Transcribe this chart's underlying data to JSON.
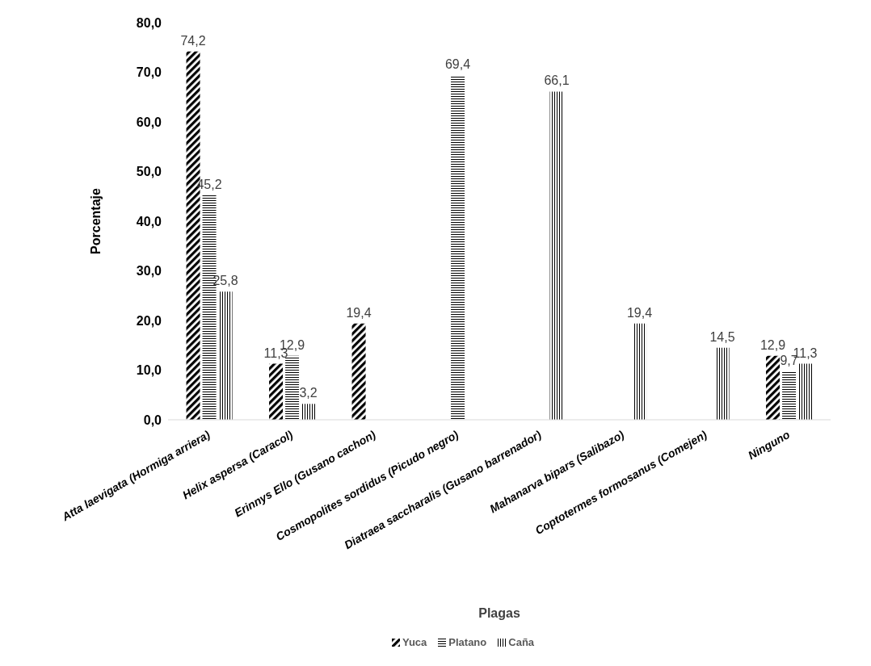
{
  "chart_data": {
    "type": "bar",
    "xlabel": "Plagas",
    "ylabel": "Porcentaje",
    "categories": [
      "Atta laevigata (Hormiga arriera)",
      "Helix aspersa (Caracol)",
      "Erinnys Ello (Gusano cachon)",
      "Cosmopolites sordidus (Picudo negro)",
      "Diatraea saccharalis (Gusano barrenador)",
      "Mahanarva bipars (Salibazo)",
      "Coptotermes formosanus (Comejen)",
      "Ninguno"
    ],
    "series": [
      {
        "name": "Yuca",
        "color": "#000000",
        "values": [
          74.2,
          11.3,
          19.4,
          null,
          null,
          null,
          null,
          12.9
        ],
        "value_labels": [
          "74,2",
          "11,3",
          "19,4",
          null,
          null,
          null,
          null,
          "12,9"
        ]
      },
      {
        "name": "Platano",
        "color": "#000000",
        "values": [
          45.2,
          12.9,
          null,
          69.4,
          null,
          null,
          null,
          9.7
        ],
        "value_labels": [
          "45,2",
          "12,9",
          null,
          "69,4",
          null,
          null,
          null,
          "9,7"
        ]
      },
      {
        "name": "Caña",
        "color": "#000000",
        "values": [
          25.8,
          3.2,
          null,
          null,
          66.1,
          19.4,
          14.5,
          11.3
        ],
        "value_labels": [
          "25,8",
          "3,2",
          null,
          null,
          "66,1",
          "19,4",
          "14,5",
          "11,3"
        ]
      }
    ],
    "ylim": [
      0,
      80
    ],
    "yticks": [
      {
        "value": 0,
        "label": "0,0"
      },
      {
        "value": 10,
        "label": "10,0"
      },
      {
        "value": 20,
        "label": "20,0"
      },
      {
        "value": 30,
        "label": "30,0"
      },
      {
        "value": 40,
        "label": "40,0"
      },
      {
        "value": 50,
        "label": "50,0"
      },
      {
        "value": 60,
        "label": "60,0"
      },
      {
        "value": 70,
        "label": "70,0"
      },
      {
        "value": 80,
        "label": "80,0"
      }
    ],
    "grid": false,
    "legend": "bottom"
  }
}
